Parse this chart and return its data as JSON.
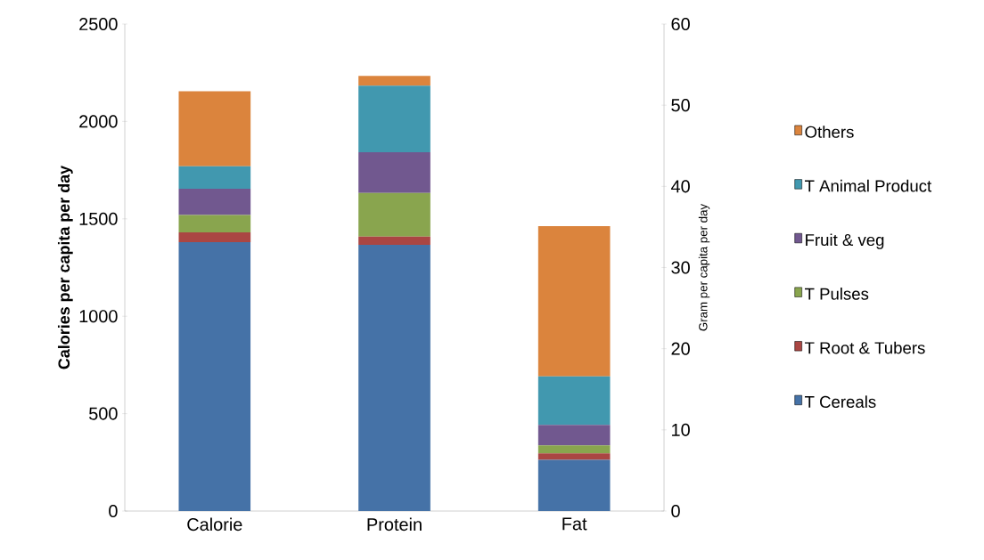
{
  "chart_data": {
    "type": "bar",
    "stacked": true,
    "categories": [
      "Calorie",
      "Protein",
      "Fat"
    ],
    "ylabel": "Calories per capita per day",
    "y2label": "Gram per capita per day",
    "ylim": [
      0,
      2500
    ],
    "yticks": [
      0,
      500,
      1000,
      1500,
      2000,
      2500
    ],
    "y2lim": [
      0,
      60
    ],
    "y2ticks": [
      0,
      10,
      20,
      30,
      40,
      50,
      60
    ],
    "legend": "right",
    "grid": false,
    "series": [
      {
        "name": "T Cereals",
        "color": "#4572a7",
        "values": [
          1380,
          null,
          null
        ]
      },
      {
        "name": "T Root & Tubers",
        "color": "#aa4643",
        "values": [
          50,
          null,
          null
        ]
      },
      {
        "name": "T Pulses",
        "color": "#89a54e",
        "values": [
          90,
          null,
          null
        ]
      },
      {
        "name": "Fruit & veg",
        "color": "#71588f",
        "values": [
          135,
          null,
          null
        ]
      },
      {
        "name": "T Animal Product",
        "color": "#4198af",
        "values": [
          115,
          null,
          null
        ]
      },
      {
        "name": "Others",
        "color": "#db843d",
        "values": [
          385,
          null,
          null
        ]
      },
      {
        "color": "#4572a7",
        "axis": "y2",
        "values": [
          null,
          32.8,
          6.3
        ]
      },
      {
        "color": "#aa4643",
        "axis": "y2",
        "values": [
          null,
          1.0,
          0.8
        ]
      },
      {
        "color": "#89a54e",
        "axis": "y2",
        "values": [
          null,
          5.4,
          1.0
        ]
      },
      {
        "color": "#71588f",
        "axis": "y2",
        "values": [
          null,
          5.0,
          2.5
        ]
      },
      {
        "color": "#4198af",
        "axis": "y2",
        "values": [
          null,
          8.2,
          6.0
        ]
      },
      {
        "color": "#db843d",
        "axis": "y2",
        "values": [
          null,
          1.2,
          18.5
        ]
      }
    ]
  }
}
